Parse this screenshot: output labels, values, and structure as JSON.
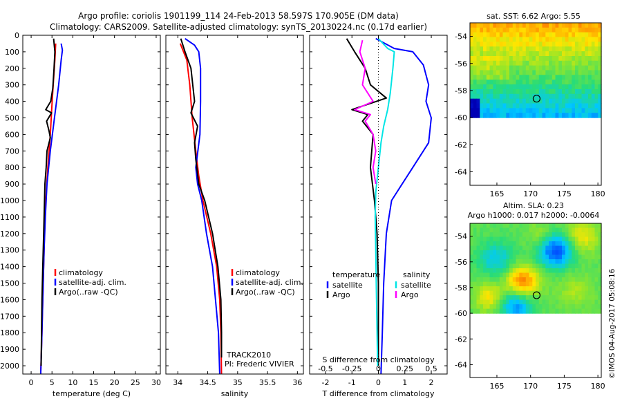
{
  "title_line1": "Argo profile: coriolis 1901199_114 24-Feb-2013 58.597S 170.905E (DM data)",
  "title_line2": "Climatology: CARS2009. Satellite-adjusted climatology: synTS_20130224.nc (0.17d earlier)",
  "watermark": "©IMOS 04-Aug-2017 05:08:16",
  "sst_title": "sat. SST: 6.62  Argo: 5.55",
  "sla_title_line1": "Altim. SLA: 0.23",
  "sla_title_line2": "Argo h1000: 0.017  h2000: -0.0064",
  "track_text": "TRACK2010",
  "pi_text": "PI: Frederic VIVIER",
  "colors": {
    "climatology": "#ff0000",
    "satellite": "#0000ff",
    "argo": "#000000",
    "satellite_s": "#00e5e5",
    "argo_s": "#ff00ff"
  },
  "chart_data": [
    {
      "type": "line",
      "xlabel": "temperature (deg C)",
      "ylabel": "",
      "xlim": [
        -2,
        31
      ],
      "ylim": [
        0,
        2050
      ],
      "y_reversed": true,
      "xticks": [
        0,
        5,
        10,
        15,
        20,
        25,
        30
      ],
      "yticks": [
        0,
        100,
        200,
        300,
        400,
        500,
        600,
        700,
        800,
        900,
        1000,
        1100,
        1200,
        1300,
        1400,
        1500,
        1600,
        1700,
        1800,
        1900,
        2000
      ],
      "legend": [
        "climatology",
        "satellite-adj. clim.",
        "Argo(..raw -QC)"
      ],
      "legend_position": "lower-right",
      "series": [
        {
          "name": "climatology",
          "color": "#ff0000",
          "points": [
            [
              5.9,
              50
            ],
            [
              5.7,
              150
            ],
            [
              5.3,
              300
            ],
            [
              5.0,
              420
            ],
            [
              4.6,
              600
            ],
            [
              4.0,
              800
            ],
            [
              3.5,
              1000
            ],
            [
              3.2,
              1200
            ],
            [
              2.9,
              1500
            ],
            [
              2.6,
              1800
            ],
            [
              2.3,
              2050
            ]
          ]
        },
        {
          "name": "satellite-adj. clim.",
          "color": "#0000ff",
          "points": [
            [
              7.2,
              50
            ],
            [
              7.5,
              90
            ],
            [
              7.2,
              150
            ],
            [
              6.6,
              300
            ],
            [
              5.6,
              500
            ],
            [
              4.6,
              700
            ],
            [
              3.8,
              900
            ],
            [
              3.4,
              1100
            ],
            [
              3.1,
              1300
            ],
            [
              2.8,
              1600
            ],
            [
              2.5,
              1900
            ],
            [
              2.3,
              2050
            ]
          ]
        },
        {
          "name": "Argo(..raw -QC)",
          "color": "#000000",
          "points": [
            [
              5.4,
              20
            ],
            [
              5.7,
              100
            ],
            [
              5.5,
              200
            ],
            [
              5.2,
              320
            ],
            [
              4.7,
              400
            ],
            [
              3.5,
              450
            ],
            [
              4.9,
              470
            ],
            [
              3.7,
              520
            ],
            [
              4.3,
              580
            ],
            [
              4.6,
              620
            ],
            [
              3.8,
              700
            ],
            [
              3.6,
              800
            ],
            [
              3.3,
              900
            ],
            [
              3.2,
              1000
            ],
            [
              3.0,
              1200
            ],
            [
              2.8,
              1400
            ],
            [
              2.6,
              1600
            ],
            [
              2.5,
              1800
            ],
            [
              2.4,
              2000
            ]
          ]
        }
      ]
    },
    {
      "type": "line",
      "xlabel": "salinity",
      "ylabel": "",
      "xlim": [
        33.8,
        36.1
      ],
      "ylim": [
        0,
        2050
      ],
      "y_reversed": true,
      "xticks": [
        34,
        34.5,
        35,
        35.5,
        36
      ],
      "legend": [
        "climatology",
        "satellite-adj. clim.",
        "Argo(..raw -QC)"
      ],
      "legend_position": "lower-right",
      "series": [
        {
          "name": "climatology",
          "color": "#ff0000",
          "points": [
            [
              34.04,
              50
            ],
            [
              34.15,
              150
            ],
            [
              34.2,
              300
            ],
            [
              34.24,
              500
            ],
            [
              34.3,
              700
            ],
            [
              34.35,
              850
            ],
            [
              34.42,
              1000
            ],
            [
              34.55,
              1200
            ],
            [
              34.65,
              1400
            ],
            [
              34.7,
              1600
            ],
            [
              34.72,
              1800
            ],
            [
              34.73,
              2050
            ]
          ]
        },
        {
          "name": "satellite-adj. clim.",
          "color": "#0000ff",
          "points": [
            [
              34.12,
              20
            ],
            [
              34.28,
              60
            ],
            [
              34.35,
              100
            ],
            [
              34.38,
              200
            ],
            [
              34.38,
              400
            ],
            [
              34.37,
              600
            ],
            [
              34.3,
              800
            ],
            [
              34.33,
              900
            ],
            [
              34.4,
              1000
            ],
            [
              34.48,
              1200
            ],
            [
              34.58,
              1400
            ],
            [
              34.63,
              1600
            ],
            [
              34.68,
              1800
            ],
            [
              34.7,
              2050
            ]
          ]
        },
        {
          "name": "Argo(..raw -QC)",
          "color": "#000000",
          "points": [
            [
              34.05,
              20
            ],
            [
              34.12,
              100
            ],
            [
              34.22,
              200
            ],
            [
              34.25,
              300
            ],
            [
              34.28,
              400
            ],
            [
              34.22,
              470
            ],
            [
              34.33,
              550
            ],
            [
              34.28,
              650
            ],
            [
              34.3,
              750
            ],
            [
              34.35,
              900
            ],
            [
              34.45,
              1000
            ],
            [
              34.58,
              1200
            ],
            [
              34.67,
              1400
            ],
            [
              34.72,
              1600
            ],
            [
              34.73,
              1800
            ],
            [
              34.73,
              1950
            ]
          ]
        }
      ]
    },
    {
      "type": "line",
      "xlabel": "T difference from climatology",
      "xlabel_top": "S difference from climatology",
      "xlim": [
        -2.6,
        2.6
      ],
      "ylim": [
        0,
        2050
      ],
      "y_reversed": true,
      "xticks": [
        -2,
        -1,
        0,
        1,
        2
      ],
      "xticks_s": [
        -0.5,
        -0.25,
        0,
        0.25,
        0.5
      ],
      "legend_groups": [
        "temperature",
        "salinity"
      ],
      "legend_position": "lower-right",
      "series": [
        {
          "name": "temperature satellite",
          "color": "#0000ff",
          "points": [
            [
              -0.1,
              20
            ],
            [
              0.6,
              80
            ],
            [
              1.3,
              100
            ],
            [
              1.7,
              180
            ],
            [
              1.9,
              300
            ],
            [
              1.8,
              400
            ],
            [
              2.0,
              500
            ],
            [
              1.9,
              650
            ],
            [
              1.7,
              700
            ],
            [
              1.3,
              800
            ],
            [
              0.9,
              900
            ],
            [
              0.5,
              1000
            ],
            [
              0.3,
              1200
            ],
            [
              0.2,
              1500
            ],
            [
              0.15,
              1800
            ],
            [
              0.1,
              2050
            ]
          ]
        },
        {
          "name": "temperature Argo",
          "color": "#000000",
          "points": [
            [
              -1.2,
              20
            ],
            [
              -0.9,
              100
            ],
            [
              -0.5,
              200
            ],
            [
              -0.3,
              300
            ],
            [
              0.3,
              380
            ],
            [
              -1.0,
              450
            ],
            [
              -0.4,
              480
            ],
            [
              -0.6,
              520
            ],
            [
              -0.2,
              600
            ],
            [
              -0.3,
              800
            ],
            [
              -0.15,
              1000
            ],
            [
              -0.05,
              1200
            ],
            [
              0.0,
              1500
            ],
            [
              0.0,
              1800
            ],
            [
              0.0,
              2000
            ]
          ]
        },
        {
          "name": "salinity satellite",
          "color": "#00e5e5",
          "points": [
            [
              0.0,
              20
            ],
            [
              0.35,
              80
            ],
            [
              0.6,
              100
            ],
            [
              0.55,
              200
            ],
            [
              0.45,
              350
            ],
            [
              0.35,
              450
            ],
            [
              0.2,
              550
            ],
            [
              0.1,
              650
            ],
            [
              0.0,
              800
            ],
            [
              -0.1,
              950
            ],
            [
              -0.12,
              1100
            ],
            [
              -0.1,
              1300
            ],
            [
              -0.08,
              1500
            ],
            [
              -0.06,
              1700
            ],
            [
              -0.04,
              1900
            ],
            [
              -0.03,
              2000
            ]
          ]
        },
        {
          "name": "salinity Argo",
          "color": "#ff00ff",
          "points": [
            [
              -0.6,
              30
            ],
            [
              -0.7,
              100
            ],
            [
              -0.5,
              200
            ],
            [
              -0.6,
              300
            ],
            [
              -0.2,
              400
            ],
            [
              -0.9,
              450
            ],
            [
              -0.3,
              480
            ],
            [
              -0.5,
              520
            ],
            [
              -0.2,
              600
            ],
            [
              -0.1,
              700
            ],
            [
              -0.2,
              800
            ],
            [
              -0.1,
              900
            ]
          ]
        }
      ]
    },
    {
      "type": "heatmap",
      "title": "sat. SST: 6.62  Argo: 5.55",
      "xlim": [
        161,
        180.5
      ],
      "ylim": [
        -65,
        -53
      ],
      "xticks": [
        165,
        170,
        175,
        180
      ],
      "yticks": [
        -54,
        -56,
        -58,
        -60,
        -62,
        -64
      ],
      "argo_position": {
        "lon": 170.9,
        "lat": -58.6
      }
    },
    {
      "type": "heatmap",
      "title": "Altim. SLA: 0.23",
      "xlim": [
        161,
        180.5
      ],
      "ylim": [
        -65,
        -53
      ],
      "xticks": [
        165,
        170,
        175,
        180
      ],
      "yticks": [
        -54,
        -56,
        -58,
        -60,
        -62,
        -64
      ],
      "argo_position": {
        "lon": 170.9,
        "lat": -58.6
      }
    }
  ]
}
